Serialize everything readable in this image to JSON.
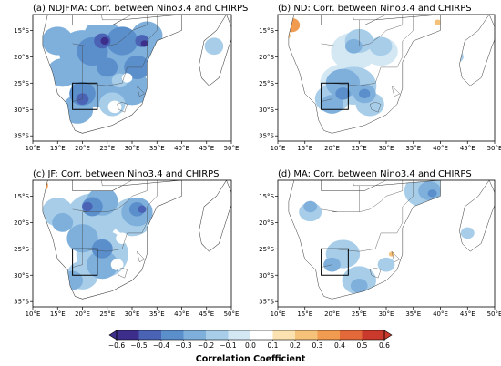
{
  "panels": [
    {
      "title": "(a) NDJFMA: Corr. between Nino3.4 and CHIRPS",
      "pattern": "a"
    },
    {
      "title": "(b) ND: Corr. between Nino3.4 and CHIRPS",
      "pattern": "b"
    },
    {
      "title": "(c) JF: Corr. between Nino3.4 and CHIRPS",
      "pattern": "c"
    },
    {
      "title": "(d) MA: Corr. between Nino3.4 and CHIRPS",
      "pattern": "d"
    }
  ],
  "x_ticks": [
    "10°E",
    "15°E",
    "20°E",
    "25°E",
    "30°E",
    "35°E",
    "40°E",
    "45°E",
    "50°E"
  ],
  "y_ticks": [
    "15°S",
    "20°S",
    "25°S",
    "30°S",
    "35°S"
  ],
  "colorbar": {
    "title": "Correlation Coefficient",
    "tick_labels": [
      "−0.6",
      "−0.5",
      "−0.4",
      "−0.3",
      "−0.2",
      "−0.1",
      "0.0",
      "0.1",
      "0.2",
      "0.3",
      "0.4",
      "0.5",
      "0.6"
    ],
    "colors": [
      "#3d2e8c",
      "#4a63b5",
      "#5b8fcc",
      "#7fb0dc",
      "#a7cde9",
      "#d4e8f4",
      "#ffffff",
      "#fbe2b0",
      "#f6c27a",
      "#f19b50",
      "#e4693a",
      "#c9392c"
    ]
  },
  "study_box": {
    "lon": [
      18,
      23
    ],
    "lat": [
      -25,
      -30
    ]
  },
  "extent": {
    "lon": [
      10,
      50
    ],
    "lat": [
      -12,
      -36
    ]
  }
}
